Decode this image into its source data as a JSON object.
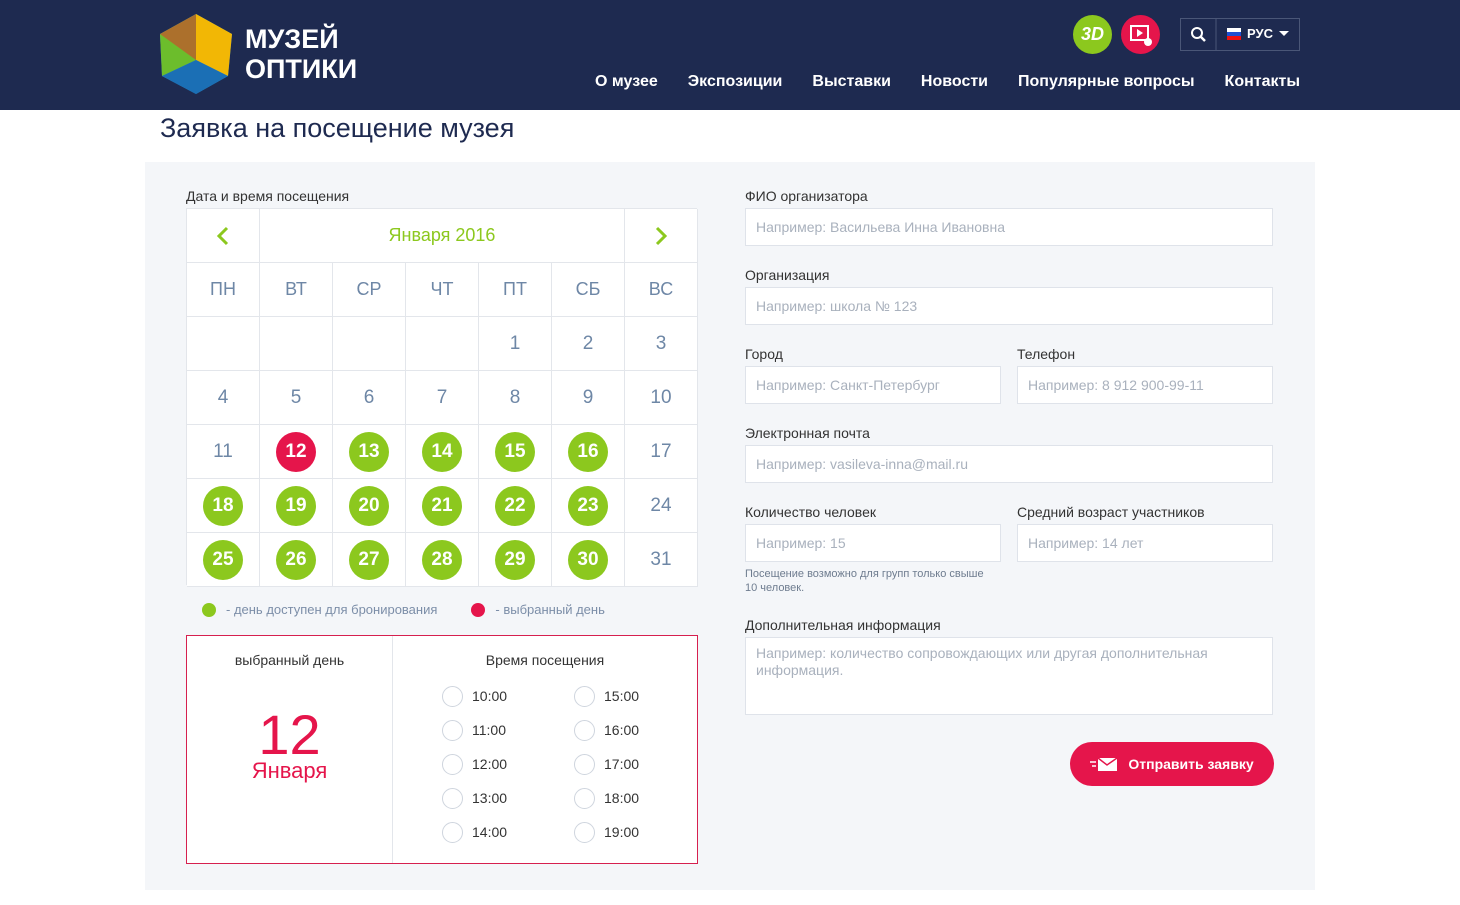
{
  "header": {
    "logo_line1": "МУЗЕЙ",
    "logo_line2": "ОПТИКИ",
    "badge_3d": "3D",
    "language": "РУС",
    "nav": [
      "О музее",
      "Экспозиции",
      "Выставки",
      "Новости",
      "Популярные вопросы",
      "Контакты"
    ]
  },
  "page_title": "Заявка на посещение музея",
  "calendar": {
    "label": "Дата и время посещения",
    "month": "Января 2016",
    "weekdays": [
      "ПН",
      "ВТ",
      "СР",
      "ЧТ",
      "ПТ",
      "СБ",
      "ВС"
    ],
    "weeks": [
      [
        null,
        null,
        null,
        null,
        {
          "day": "1"
        },
        {
          "day": "2"
        },
        {
          "day": "3"
        }
      ],
      [
        {
          "day": "4"
        },
        {
          "day": "5"
        },
        {
          "day": "6"
        },
        {
          "day": "7"
        },
        {
          "day": "8"
        },
        {
          "day": "9"
        },
        {
          "day": "10"
        }
      ],
      [
        {
          "day": "11"
        },
        {
          "day": "12",
          "fill": "#e5154b"
        },
        {
          "day": "13",
          "fill": "#8cc81e"
        },
        {
          "day": "14",
          "fill": "#8cc81e"
        },
        {
          "day": "15",
          "fill": "#8cc81e"
        },
        {
          "day": "16",
          "fill": "#8cc81e"
        },
        {
          "day": "17"
        }
      ],
      [
        {
          "day": "18",
          "fill": "#8cc81e"
        },
        {
          "day": "19",
          "fill": "#8cc81e"
        },
        {
          "day": "20",
          "fill": "#8cc81e"
        },
        {
          "day": "21",
          "fill": "#8cc81e"
        },
        {
          "day": "22",
          "fill": "#8cc81e"
        },
        {
          "day": "23",
          "fill": "#8cc81e"
        },
        {
          "day": "24"
        }
      ],
      [
        {
          "day": "25",
          "fill": "#8cc81e"
        },
        {
          "day": "26",
          "fill": "#8cc81e"
        },
        {
          "day": "27",
          "fill": "#8cc81e"
        },
        {
          "day": "28",
          "fill": "#8cc81e"
        },
        {
          "day": "29",
          "fill": "#8cc81e"
        },
        {
          "day": "30",
          "fill": "#8cc81e"
        },
        {
          "day": "31"
        }
      ]
    ],
    "legend": [
      {
        "color": "#8cc81e",
        "text": "- день доступен для бронирования"
      },
      {
        "color": "#e5154b",
        "text": "- выбранный день"
      }
    ]
  },
  "selection": {
    "day_label": "выбранный день",
    "day": "12",
    "month": "Января",
    "time_label": "Время посещения",
    "times": [
      "10:00",
      "11:00",
      "12:00",
      "13:00",
      "14:00",
      "15:00",
      "16:00",
      "17:00",
      "18:00",
      "19:00"
    ]
  },
  "form": {
    "fields": [
      {
        "label": "ФИО организатора",
        "placeholder": "Например: Васильева Инна Ивановна"
      },
      {
        "label": "Организация",
        "placeholder": "Например: школа № 123"
      },
      {
        "label": "Город",
        "placeholder": "Например: Санкт-Петербург"
      },
      {
        "label": "Телефон",
        "placeholder": "Например: 8 912 900-99-11"
      },
      {
        "label": "Электронная почта",
        "placeholder": "Например: vasileva-inna@mail.ru"
      },
      {
        "label": "Количество человек",
        "placeholder": "Например: 15"
      },
      {
        "label": "Средний возраст участников",
        "placeholder": "Например: 14 лет"
      },
      {
        "label": "Дополнительная информация",
        "placeholder": "Например: количество сопровождающих  или другая дополнительная информация."
      }
    ],
    "note": "Посещение возможно для групп только свыше 10 человек.",
    "button": "Отправить заявку"
  }
}
